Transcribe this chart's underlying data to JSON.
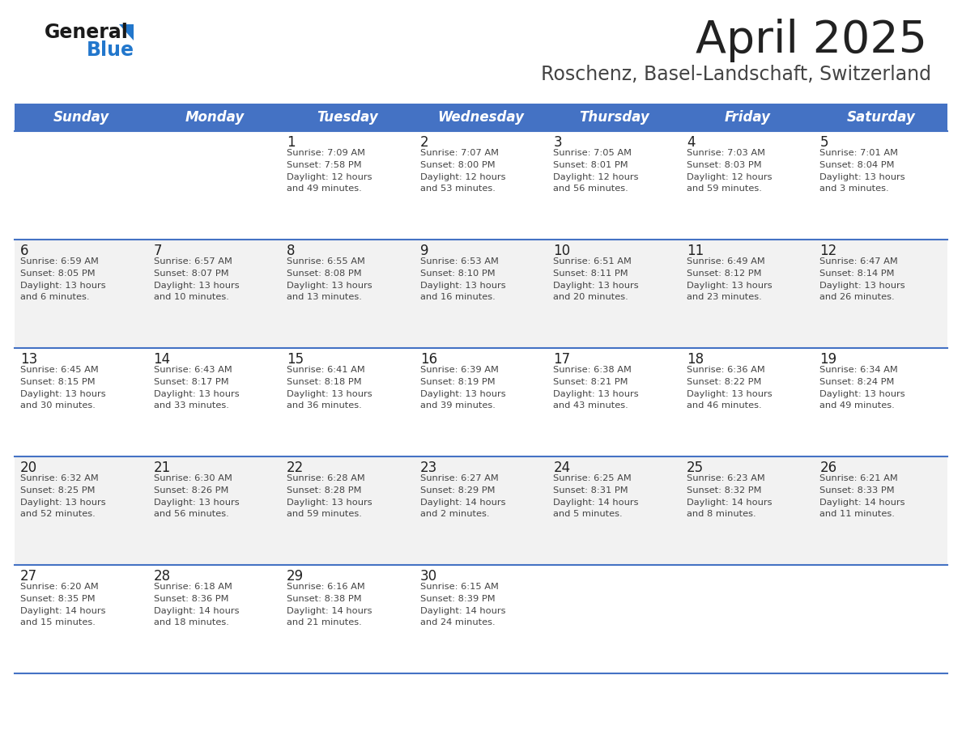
{
  "title": "April 2025",
  "subtitle": "Roschenz, Basel-Landschaft, Switzerland",
  "days_of_week": [
    "Sunday",
    "Monday",
    "Tuesday",
    "Wednesday",
    "Thursday",
    "Friday",
    "Saturday"
  ],
  "header_bg": "#4472C4",
  "header_text": "#FFFFFF",
  "row_bg_odd": "#FFFFFF",
  "row_bg_even": "#F2F2F2",
  "cell_text_color": "#444444",
  "day_num_color": "#222222",
  "divider_color": "#4472C4",
  "title_color": "#222222",
  "subtitle_color": "#444444",
  "logo_general_color": "#1a1a1a",
  "logo_blue_color": "#2277CC",
  "logo_triangle_color": "#2277CC",
  "calendar": [
    [
      {
        "day": null,
        "text": ""
      },
      {
        "day": null,
        "text": ""
      },
      {
        "day": 1,
        "text": "Sunrise: 7:09 AM\nSunset: 7:58 PM\nDaylight: 12 hours\nand 49 minutes."
      },
      {
        "day": 2,
        "text": "Sunrise: 7:07 AM\nSunset: 8:00 PM\nDaylight: 12 hours\nand 53 minutes."
      },
      {
        "day": 3,
        "text": "Sunrise: 7:05 AM\nSunset: 8:01 PM\nDaylight: 12 hours\nand 56 minutes."
      },
      {
        "day": 4,
        "text": "Sunrise: 7:03 AM\nSunset: 8:03 PM\nDaylight: 12 hours\nand 59 minutes."
      },
      {
        "day": 5,
        "text": "Sunrise: 7:01 AM\nSunset: 8:04 PM\nDaylight: 13 hours\nand 3 minutes."
      }
    ],
    [
      {
        "day": 6,
        "text": "Sunrise: 6:59 AM\nSunset: 8:05 PM\nDaylight: 13 hours\nand 6 minutes."
      },
      {
        "day": 7,
        "text": "Sunrise: 6:57 AM\nSunset: 8:07 PM\nDaylight: 13 hours\nand 10 minutes."
      },
      {
        "day": 8,
        "text": "Sunrise: 6:55 AM\nSunset: 8:08 PM\nDaylight: 13 hours\nand 13 minutes."
      },
      {
        "day": 9,
        "text": "Sunrise: 6:53 AM\nSunset: 8:10 PM\nDaylight: 13 hours\nand 16 minutes."
      },
      {
        "day": 10,
        "text": "Sunrise: 6:51 AM\nSunset: 8:11 PM\nDaylight: 13 hours\nand 20 minutes."
      },
      {
        "day": 11,
        "text": "Sunrise: 6:49 AM\nSunset: 8:12 PM\nDaylight: 13 hours\nand 23 minutes."
      },
      {
        "day": 12,
        "text": "Sunrise: 6:47 AM\nSunset: 8:14 PM\nDaylight: 13 hours\nand 26 minutes."
      }
    ],
    [
      {
        "day": 13,
        "text": "Sunrise: 6:45 AM\nSunset: 8:15 PM\nDaylight: 13 hours\nand 30 minutes."
      },
      {
        "day": 14,
        "text": "Sunrise: 6:43 AM\nSunset: 8:17 PM\nDaylight: 13 hours\nand 33 minutes."
      },
      {
        "day": 15,
        "text": "Sunrise: 6:41 AM\nSunset: 8:18 PM\nDaylight: 13 hours\nand 36 minutes."
      },
      {
        "day": 16,
        "text": "Sunrise: 6:39 AM\nSunset: 8:19 PM\nDaylight: 13 hours\nand 39 minutes."
      },
      {
        "day": 17,
        "text": "Sunrise: 6:38 AM\nSunset: 8:21 PM\nDaylight: 13 hours\nand 43 minutes."
      },
      {
        "day": 18,
        "text": "Sunrise: 6:36 AM\nSunset: 8:22 PM\nDaylight: 13 hours\nand 46 minutes."
      },
      {
        "day": 19,
        "text": "Sunrise: 6:34 AM\nSunset: 8:24 PM\nDaylight: 13 hours\nand 49 minutes."
      }
    ],
    [
      {
        "day": 20,
        "text": "Sunrise: 6:32 AM\nSunset: 8:25 PM\nDaylight: 13 hours\nand 52 minutes."
      },
      {
        "day": 21,
        "text": "Sunrise: 6:30 AM\nSunset: 8:26 PM\nDaylight: 13 hours\nand 56 minutes."
      },
      {
        "day": 22,
        "text": "Sunrise: 6:28 AM\nSunset: 8:28 PM\nDaylight: 13 hours\nand 59 minutes."
      },
      {
        "day": 23,
        "text": "Sunrise: 6:27 AM\nSunset: 8:29 PM\nDaylight: 14 hours\nand 2 minutes."
      },
      {
        "day": 24,
        "text": "Sunrise: 6:25 AM\nSunset: 8:31 PM\nDaylight: 14 hours\nand 5 minutes."
      },
      {
        "day": 25,
        "text": "Sunrise: 6:23 AM\nSunset: 8:32 PM\nDaylight: 14 hours\nand 8 minutes."
      },
      {
        "day": 26,
        "text": "Sunrise: 6:21 AM\nSunset: 8:33 PM\nDaylight: 14 hours\nand 11 minutes."
      }
    ],
    [
      {
        "day": 27,
        "text": "Sunrise: 6:20 AM\nSunset: 8:35 PM\nDaylight: 14 hours\nand 15 minutes."
      },
      {
        "day": 28,
        "text": "Sunrise: 6:18 AM\nSunset: 8:36 PM\nDaylight: 14 hours\nand 18 minutes."
      },
      {
        "day": 29,
        "text": "Sunrise: 6:16 AM\nSunset: 8:38 PM\nDaylight: 14 hours\nand 21 minutes."
      },
      {
        "day": 30,
        "text": "Sunrise: 6:15 AM\nSunset: 8:39 PM\nDaylight: 14 hours\nand 24 minutes."
      },
      {
        "day": null,
        "text": ""
      },
      {
        "day": null,
        "text": ""
      },
      {
        "day": null,
        "text": ""
      }
    ]
  ]
}
